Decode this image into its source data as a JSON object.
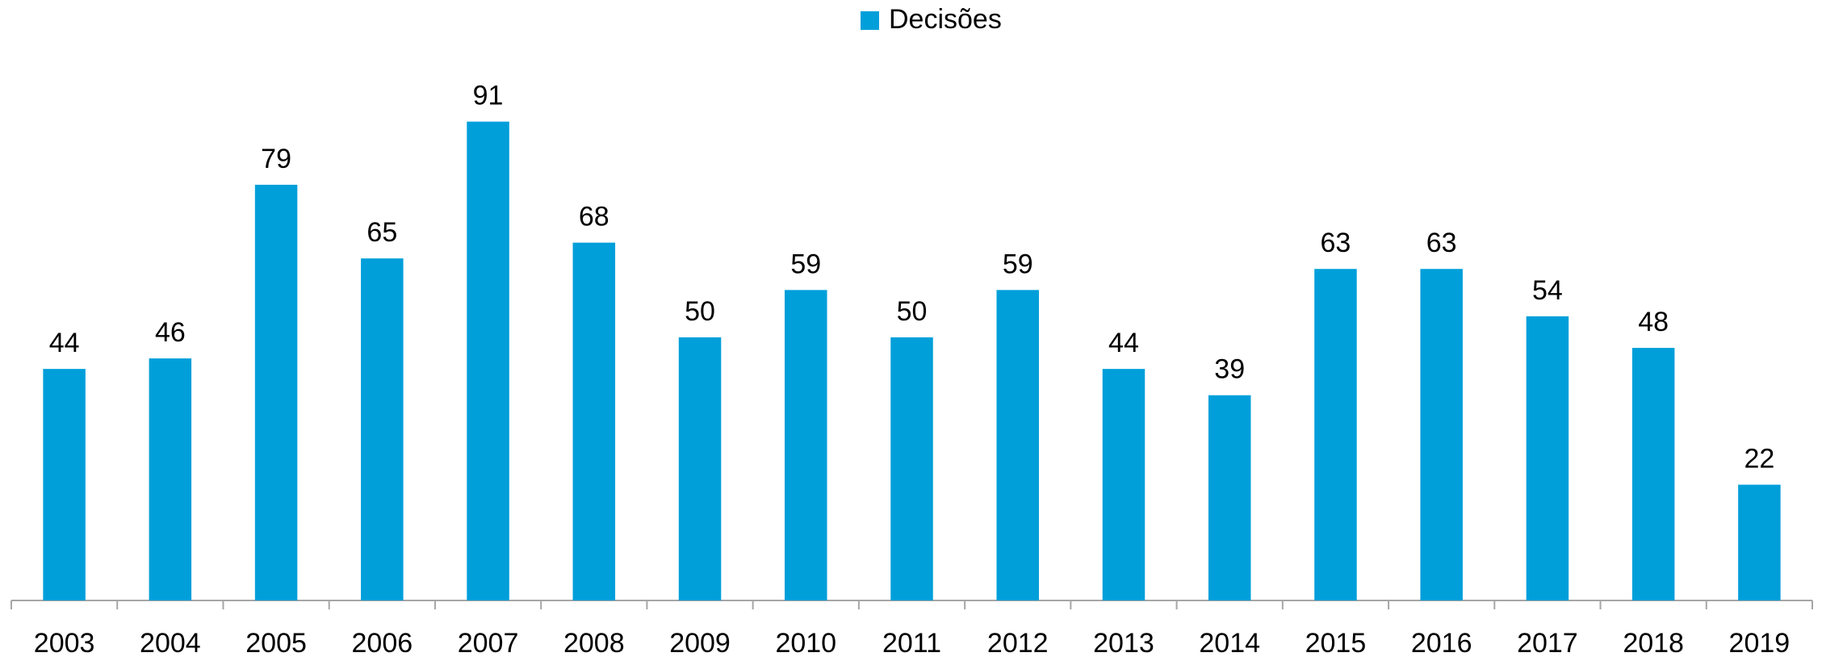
{
  "chart_data": {
    "type": "bar",
    "categories": [
      "2003",
      "2004",
      "2005",
      "2006",
      "2007",
      "2008",
      "2009",
      "2010",
      "2011",
      "2012",
      "2013",
      "2014",
      "2015",
      "2016",
      "2017",
      "2018",
      "2019"
    ],
    "series": [
      {
        "name": "Decisões",
        "color": "#009fda",
        "values": [
          44,
          46,
          79,
          65,
          91,
          68,
          50,
          59,
          50,
          59,
          44,
          39,
          63,
          63,
          54,
          48,
          22
        ]
      }
    ],
    "ylim": [
      0,
      100
    ],
    "legend": "top"
  }
}
